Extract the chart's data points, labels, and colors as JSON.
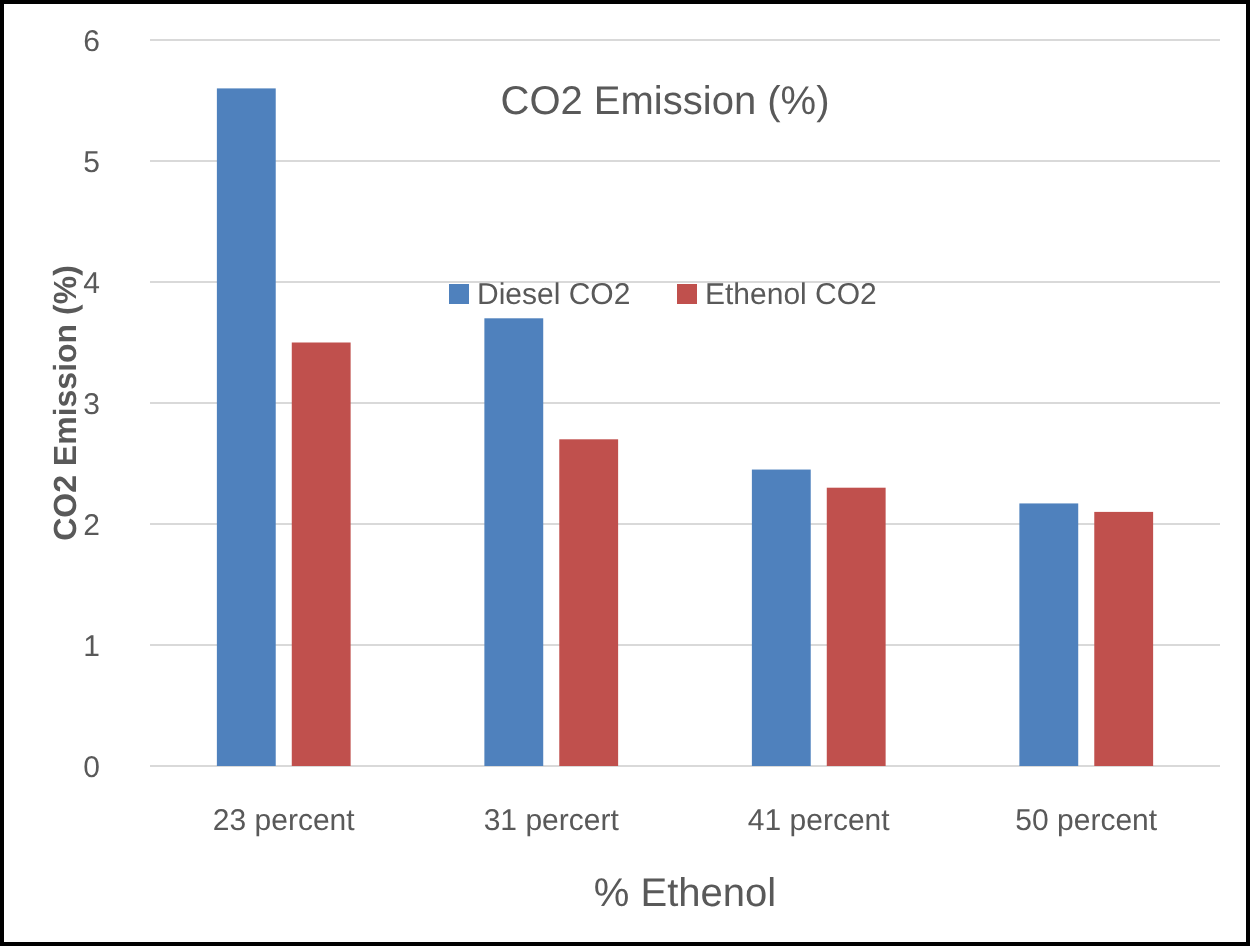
{
  "chart_data": {
    "type": "bar",
    "title": "CO2 Emission (%)",
    "xlabel": "% Ethenol",
    "ylabel": "CO2 Emission (%)",
    "categories": [
      "23 percent",
      "31 percert",
      "41 percent",
      "50 percent"
    ],
    "series": [
      {
        "name": "Diesel CO2",
        "color": "#4f81bd",
        "values": [
          5.6,
          3.7,
          2.45,
          2.17
        ]
      },
      {
        "name": "Ethenol CO2",
        "color": "#c0504d",
        "values": [
          3.5,
          2.7,
          2.3,
          2.1
        ]
      }
    ],
    "ylim": [
      0,
      6
    ],
    "yticks": [
      0,
      1,
      2,
      3,
      4,
      5,
      6
    ],
    "grid": "y",
    "legend": "top"
  }
}
